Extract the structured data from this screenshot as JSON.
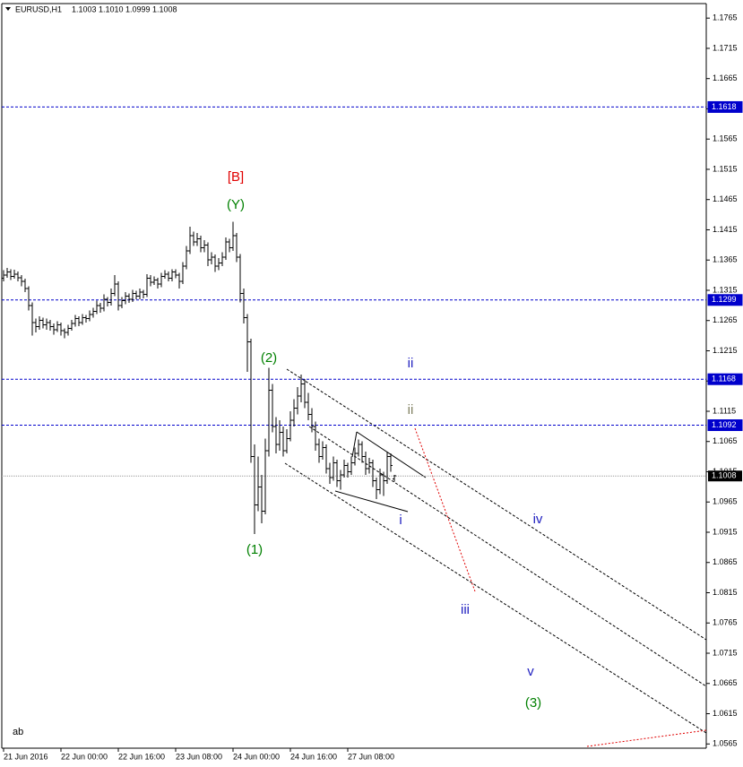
{
  "chart_data": {
    "type": "ohlc",
    "header": {
      "symbol": "EURUSD,H1",
      "ohlc_labels": [
        "1.1003",
        "1.1010",
        "1.0999",
        "1.1008"
      ]
    },
    "color": "#000000",
    "xlim": [
      -0.5,
      196
    ],
    "xticks": [
      {
        "value": 0,
        "label": "21 Jun 2016"
      },
      {
        "value": 16,
        "label": "22 Jun 00:00"
      },
      {
        "value": 32,
        "label": "22 Jun 16:00"
      },
      {
        "value": 48,
        "label": "23 Jun 08:00"
      },
      {
        "value": 64,
        "label": "24 Jun 00:00"
      },
      {
        "value": 80,
        "label": "24 Jun 16:00"
      },
      {
        "value": 96,
        "label": "27 Jun 08:00"
      }
    ],
    "ylim": [
      1.0558,
      1.1789
    ],
    "yticks": [
      1.1765,
      1.1715,
      1.1665,
      1.1615,
      1.1565,
      1.1515,
      1.1465,
      1.1415,
      1.1365,
      1.1315,
      1.1265,
      1.1215,
      1.1165,
      1.1115,
      1.1065,
      1.1015,
      1.0965,
      1.0915,
      1.0865,
      1.0815,
      1.0765,
      1.0715,
      1.0665,
      1.0615,
      1.0565
    ],
    "levels": [
      {
        "value": 1.1618,
        "color": "#0000cc"
      },
      {
        "value": 1.1299,
        "color": "#0000cc"
      },
      {
        "value": 1.1168,
        "color": "#0000cc"
      },
      {
        "value": 1.1092,
        "color": "#0000cc"
      }
    ],
    "last_price": {
      "value": 1.1008,
      "color": "#000000"
    },
    "annotations": [
      {
        "text": "[B]",
        "color": "#e00000"
      },
      {
        "text": "(Y)",
        "color": "#008000"
      },
      {
        "text": "(2)",
        "color": "#008000"
      },
      {
        "text": "(1)",
        "color": "#008000"
      },
      {
        "text": "ii",
        "color": "#2020c0"
      },
      {
        "text": "ii",
        "color": "#808060"
      },
      {
        "text": "i",
        "color": "#2020c0"
      },
      {
        "text": "iv",
        "color": "#2020c0"
      },
      {
        "text": "iii",
        "color": "#2020c0"
      },
      {
        "text": "v",
        "color": "#2020c0"
      },
      {
        "text": "(3)",
        "color": "#008000"
      },
      {
        "text": "ab",
        "color": "#000000"
      }
    ],
    "ohlc": [
      [
        1.1335,
        1.1348,
        1.133,
        1.134
      ],
      [
        1.134,
        1.1352,
        1.1336,
        1.1345
      ],
      [
        1.1345,
        1.135,
        1.1332,
        1.1338
      ],
      [
        1.1338,
        1.1349,
        1.1334,
        1.1342
      ],
      [
        1.1342,
        1.1346,
        1.133,
        1.1336
      ],
      [
        1.1336,
        1.134,
        1.1322,
        1.133
      ],
      [
        1.133,
        1.1334,
        1.1312,
        1.1318
      ],
      [
        1.1318,
        1.1322,
        1.1282,
        1.129
      ],
      [
        1.129,
        1.1295,
        1.124,
        1.1262
      ],
      [
        1.1262,
        1.1268,
        1.1245,
        1.1255
      ],
      [
        1.1255,
        1.1272,
        1.125,
        1.1265
      ],
      [
        1.1265,
        1.127,
        1.1252,
        1.1258
      ],
      [
        1.1258,
        1.1268,
        1.125,
        1.1262
      ],
      [
        1.1262,
        1.1266,
        1.1248,
        1.1255
      ],
      [
        1.1255,
        1.126,
        1.1242,
        1.125
      ],
      [
        1.125,
        1.1264,
        1.1246,
        1.1258
      ],
      [
        1.1258,
        1.1262,
        1.124,
        1.1248
      ],
      [
        1.1248,
        1.1252,
        1.1236,
        1.1245
      ],
      [
        1.1245,
        1.1258,
        1.124,
        1.1252
      ],
      [
        1.1252,
        1.1266,
        1.1248,
        1.126
      ],
      [
        1.126,
        1.1274,
        1.1255,
        1.1268
      ],
      [
        1.1268,
        1.1272,
        1.1256,
        1.1262
      ],
      [
        1.1262,
        1.1276,
        1.1258,
        1.127
      ],
      [
        1.127,
        1.1274,
        1.1262,
        1.1268
      ],
      [
        1.1268,
        1.1282,
        1.1264,
        1.1275
      ],
      [
        1.1275,
        1.1286,
        1.127,
        1.128
      ],
      [
        1.128,
        1.1298,
        1.1276,
        1.129
      ],
      [
        1.129,
        1.1294,
        1.1278,
        1.1285
      ],
      [
        1.1285,
        1.1308,
        1.128,
        1.13
      ],
      [
        1.13,
        1.1304,
        1.1288,
        1.1295
      ],
      [
        1.1295,
        1.1318,
        1.129,
        1.131
      ],
      [
        1.131,
        1.134,
        1.1305,
        1.1325
      ],
      [
        1.1325,
        1.133,
        1.1282,
        1.129
      ],
      [
        1.129,
        1.1304,
        1.1285,
        1.1298
      ],
      [
        1.1298,
        1.1312,
        1.1292,
        1.1305
      ],
      [
        1.1305,
        1.131,
        1.1294,
        1.13
      ],
      [
        1.13,
        1.1316,
        1.1296,
        1.131
      ],
      [
        1.131,
        1.1314,
        1.13,
        1.1305
      ],
      [
        1.1305,
        1.1318,
        1.13,
        1.1312
      ],
      [
        1.1312,
        1.1316,
        1.1302,
        1.1308
      ],
      [
        1.1308,
        1.1342,
        1.1304,
        1.1335
      ],
      [
        1.1335,
        1.134,
        1.1322,
        1.1328
      ],
      [
        1.1328,
        1.1338,
        1.1324,
        1.1332
      ],
      [
        1.1332,
        1.1336,
        1.1318,
        1.1325
      ],
      [
        1.1325,
        1.1344,
        1.132,
        1.1338
      ],
      [
        1.1338,
        1.1348,
        1.1334,
        1.1342
      ],
      [
        1.1342,
        1.1346,
        1.133,
        1.1335
      ],
      [
        1.1335,
        1.135,
        1.133,
        1.1345
      ],
      [
        1.1345,
        1.135,
        1.1335,
        1.134
      ],
      [
        1.134,
        1.1344,
        1.1318,
        1.133
      ],
      [
        1.133,
        1.1362,
        1.1325,
        1.1355
      ],
      [
        1.1355,
        1.1388,
        1.135,
        1.138
      ],
      [
        1.138,
        1.142,
        1.1375,
        1.1405
      ],
      [
        1.1405,
        1.1412,
        1.1388,
        1.1395
      ],
      [
        1.1395,
        1.141,
        1.1388,
        1.14
      ],
      [
        1.14,
        1.1405,
        1.1378,
        1.1385
      ],
      [
        1.1385,
        1.1398,
        1.1378,
        1.139
      ],
      [
        1.139,
        1.1394,
        1.1355,
        1.1365
      ],
      [
        1.1365,
        1.1378,
        1.1358,
        1.137
      ],
      [
        1.137,
        1.1374,
        1.1345,
        1.1355
      ],
      [
        1.1355,
        1.1368,
        1.1348,
        1.136
      ],
      [
        1.136,
        1.1378,
        1.1355,
        1.137
      ],
      [
        1.137,
        1.1402,
        1.1365,
        1.1395
      ],
      [
        1.1395,
        1.14,
        1.1378,
        1.1385
      ],
      [
        1.1385,
        1.1428,
        1.138,
        1.1405
      ],
      [
        1.1405,
        1.141,
        1.1362,
        1.137
      ],
      [
        1.137,
        1.1375,
        1.1295,
        1.131
      ],
      [
        1.131,
        1.1318,
        1.126,
        1.127
      ],
      [
        1.127,
        1.1276,
        1.118,
        1.123
      ],
      [
        1.123,
        1.1235,
        1.103,
        1.104
      ],
      [
        1.104,
        1.106,
        1.0912,
        1.096
      ],
      [
        1.096,
        1.104,
        1.095,
        1.099
      ],
      [
        1.099,
        1.101,
        1.093,
        1.095
      ],
      [
        1.095,
        1.107,
        1.0945,
        1.105
      ],
      [
        1.105,
        1.1187,
        1.104,
        1.115
      ],
      [
        1.115,
        1.116,
        1.108,
        1.109
      ],
      [
        1.109,
        1.1105,
        1.1045,
        1.106
      ],
      [
        1.106,
        1.11,
        1.105,
        1.108
      ],
      [
        1.108,
        1.109,
        1.104,
        1.105
      ],
      [
        1.105,
        1.1085,
        1.1045,
        1.107
      ],
      [
        1.107,
        1.1115,
        1.1065,
        1.11
      ],
      [
        1.11,
        1.1135,
        1.109,
        1.112
      ],
      [
        1.112,
        1.1155,
        1.111,
        1.114
      ],
      [
        1.114,
        1.1176,
        1.113,
        1.116
      ],
      [
        1.116,
        1.1168,
        1.112,
        1.113
      ],
      [
        1.113,
        1.1145,
        1.11,
        1.111
      ],
      [
        1.111,
        1.112,
        1.108,
        1.109
      ],
      [
        1.109,
        1.1098,
        1.105,
        1.106
      ],
      [
        1.106,
        1.107,
        1.103,
        1.104
      ],
      [
        1.104,
        1.1065,
        1.1035,
        1.1055
      ],
      [
        1.1055,
        1.106,
        1.1012,
        1.102
      ],
      [
        1.102,
        1.103,
        1.0995,
        1.1005
      ],
      [
        1.1005,
        1.104,
        1.1,
        1.103
      ],
      [
        1.103,
        1.1035,
        1.099,
        1.1
      ],
      [
        1.1,
        1.1018,
        1.0985,
        1.101
      ],
      [
        1.101,
        1.1035,
        1.1005,
        1.1025
      ],
      [
        1.1025,
        1.103,
        1.1005,
        1.1015
      ],
      [
        1.1015,
        1.104,
        1.101,
        1.103
      ],
      [
        1.103,
        1.1055,
        1.1025,
        1.1045
      ],
      [
        1.1045,
        1.1068,
        1.104,
        1.106
      ],
      [
        1.106,
        1.1065,
        1.103,
        1.104
      ],
      [
        1.104,
        1.1048,
        1.101,
        1.102
      ],
      [
        1.102,
        1.1038,
        1.1012,
        1.103
      ],
      [
        1.103,
        1.1035,
        1.099,
        1.1
      ],
      [
        1.1,
        1.1005,
        1.097,
        1.0985
      ],
      [
        1.0985,
        1.102,
        1.0978,
        1.101
      ],
      [
        1.101,
        1.1015,
        1.0975,
        1.1
      ],
      [
        1.1,
        1.1048,
        1.0995,
        1.104
      ],
      [
        1.104,
        1.1045,
        1.1015,
        1.1025
      ],
      [
        1.1003,
        1.101,
        1.0999,
        1.1008
      ]
    ]
  }
}
